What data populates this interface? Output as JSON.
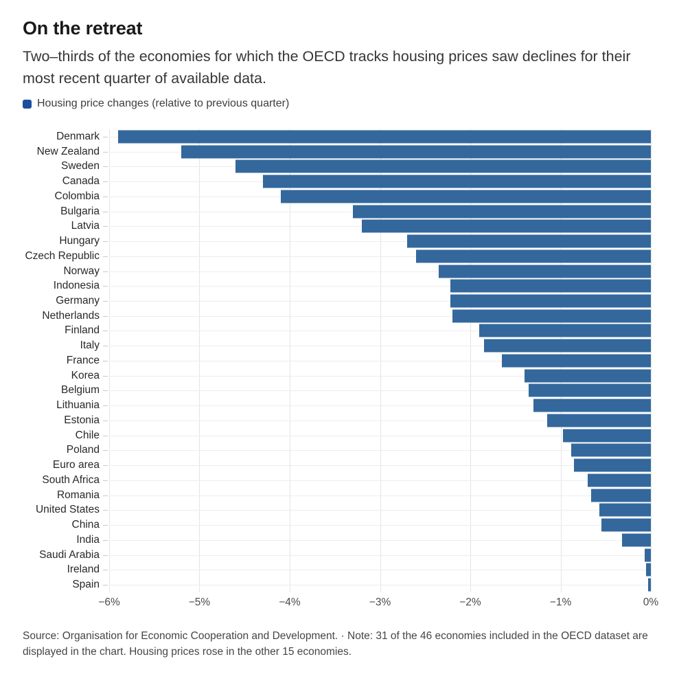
{
  "header": {
    "title": "On the retreat",
    "subtitle": "Two–thirds of the economies for which the OECD tracks housing prices saw declines for their most recent quarter of available data."
  },
  "legend": {
    "label": "Housing price changes (relative to previous quarter)",
    "swatch_color": "#1b4f9c"
  },
  "chart_data": {
    "type": "bar",
    "orientation": "horizontal",
    "title": "On the retreat",
    "xlabel": "",
    "ylabel": "",
    "unit": "%",
    "xlim": [
      -6,
      0
    ],
    "grid": true,
    "bar_color": "#34689c",
    "x_ticks": [
      "−6%",
      "−5%",
      "−4%",
      "−3%",
      "−2%",
      "−1%",
      "0%"
    ],
    "categories": [
      "Denmark",
      "New Zealand",
      "Sweden",
      "Canada",
      "Colombia",
      "Bulgaria",
      "Latvia",
      "Hungary",
      "Czech Republic",
      "Norway",
      "Indonesia",
      "Germany",
      "Netherlands",
      "Finland",
      "Italy",
      "France",
      "Korea",
      "Belgium",
      "Lithuania",
      "Estonia",
      "Chile",
      "Poland",
      "Euro area",
      "South Africa",
      "Romania",
      "United States",
      "China",
      "India",
      "Saudi Arabia",
      "Ireland",
      "Spain"
    ],
    "values": [
      -5.9,
      -5.2,
      -4.6,
      -4.3,
      -4.1,
      -3.3,
      -3.2,
      -2.7,
      -2.6,
      -2.35,
      -2.22,
      -2.22,
      -2.2,
      -1.9,
      -1.85,
      -1.65,
      -1.4,
      -1.35,
      -1.3,
      -1.15,
      -0.97,
      -0.88,
      -0.85,
      -0.7,
      -0.66,
      -0.57,
      -0.55,
      -0.32,
      -0.07,
      -0.05,
      -0.03
    ],
    "series_name": "Housing price changes (relative to previous quarter)",
    "legend_position": "top-left"
  },
  "footer": {
    "text": "Source: Organisation for Economic Cooperation and Development. · Note: 31 of the 46 economies included in the OECD dataset are displayed in the chart. Housing prices rose in the other 15 economies."
  }
}
